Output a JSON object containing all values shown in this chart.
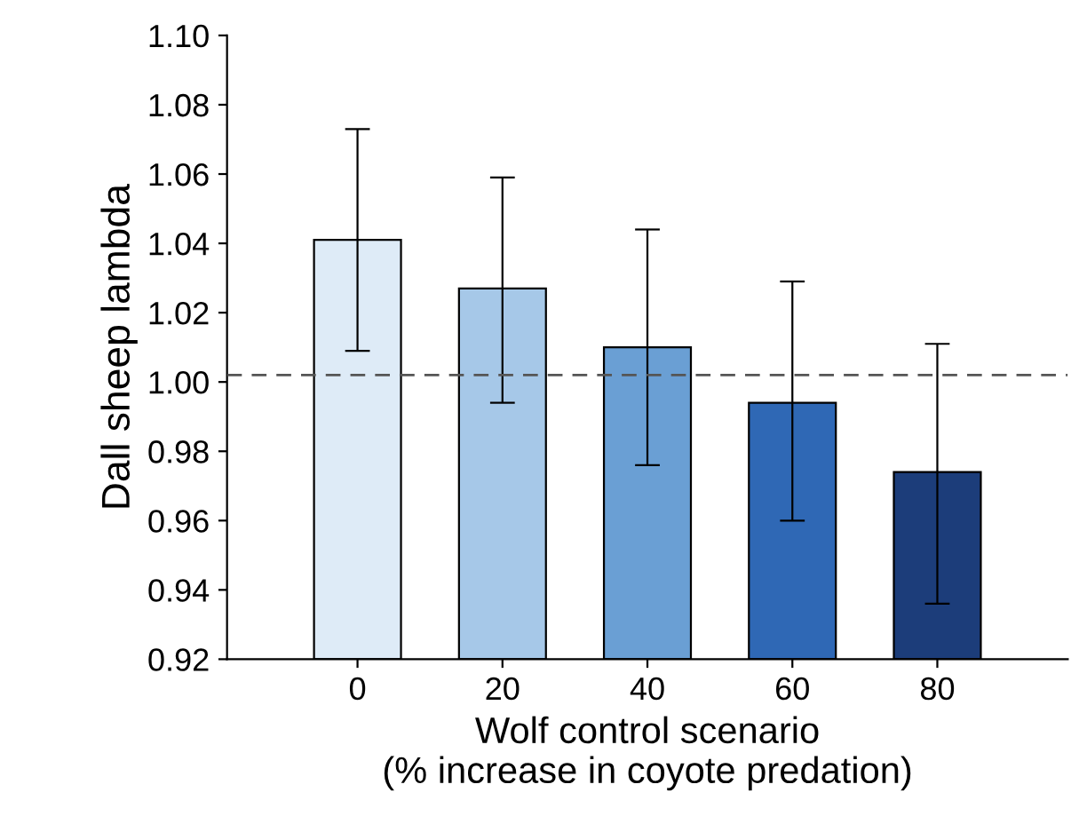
{
  "chart_data": {
    "type": "bar",
    "xlabel": "Wolf control scenario\n(% increase in coyote predation)",
    "ylabel": "Dall sheep lambda",
    "categories": [
      "0",
      "20",
      "40",
      "60",
      "80"
    ],
    "values": [
      1.041,
      1.027,
      1.01,
      0.994,
      0.974
    ],
    "colors": [
      "#deebf7",
      "#a6c8e8",
      "#6a9fd4",
      "#2f68b5",
      "#1c3d7a"
    ],
    "errors": [
      [
        1.009,
        1.073
      ],
      [
        0.994,
        1.059
      ],
      [
        0.976,
        1.044
      ],
      [
        0.96,
        1.029
      ],
      [
        0.936,
        1.011
      ]
    ],
    "ylim": [
      0.92,
      1.1
    ],
    "yticks": [
      0.92,
      0.94,
      0.96,
      0.98,
      {
        "value": 1.0,
        "label": "1.00"
      },
      1.02,
      1.04,
      1.06,
      1.08,
      {
        "value": 1.1,
        "label": "1.10"
      }
    ],
    "ref_lines": [
      {
        "axis": "y",
        "value": 1.002,
        "line_style": "dashed",
        "color": "#555555"
      }
    ],
    "grid": false
  }
}
